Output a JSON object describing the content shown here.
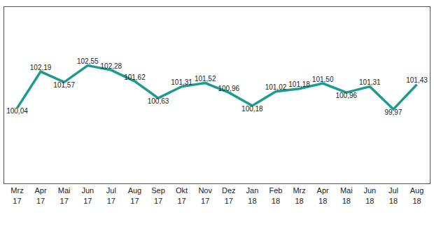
{
  "chart_data": {
    "type": "line",
    "categories": [
      "Mrz 17",
      "Apr 17",
      "Mai 17",
      "Jun 17",
      "Jul 17",
      "Aug 17",
      "Sep 17",
      "Okt 17",
      "Nov 17",
      "Dez 17",
      "Jan 18",
      "Feb 18",
      "Mrz 18",
      "Apr 18",
      "Mai 18",
      "Jun 18",
      "Jul 18",
      "Aug 18"
    ],
    "values": [
      100.04,
      102.19,
      101.57,
      102.55,
      102.28,
      101.62,
      100.63,
      101.31,
      101.52,
      100.96,
      100.18,
      101.02,
      101.18,
      101.5,
      100.96,
      101.31,
      99.97,
      101.43
    ],
    "value_labels": [
      "100,04",
      "102,19",
      "101,57",
      "102,55",
      "102,28",
      "101,62",
      "100,63",
      "101,31",
      "101,52",
      "100,96",
      "100,18",
      "101,02",
      "101,18",
      "101,50",
      "100,96",
      "101,31",
      "99,97",
      "101,43"
    ],
    "color": "#1c9b8f",
    "ylim": [
      95.6,
      106
    ],
    "grid": false,
    "data_labels": true,
    "tick_labels": "x"
  }
}
